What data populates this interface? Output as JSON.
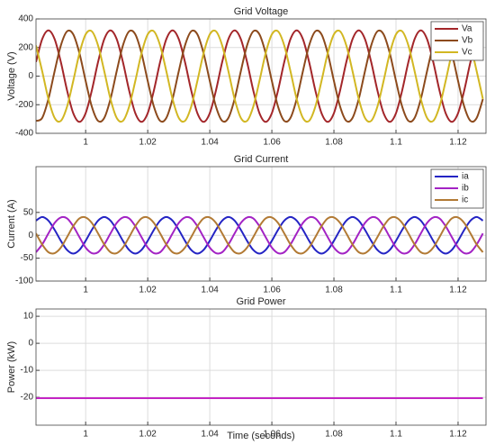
{
  "chart_data": [
    {
      "type": "line",
      "title": "Grid Voltage",
      "ylabel": "Voltage (V)",
      "xlim": [
        0.984,
        1.129
      ],
      "ylim": [
        -400,
        400
      ],
      "xticks": [
        1,
        1.02,
        1.04,
        1.06,
        1.08,
        1.1,
        1.12
      ],
      "yticks": [
        -400,
        -200,
        0,
        200,
        400
      ],
      "grid": true,
      "legend": "upper right",
      "x": [
        0.984,
        0.986,
        0.988,
        0.99,
        0.992,
        0.994,
        0.996,
        0.998,
        1,
        1.002,
        1.004,
        1.006,
        1.008,
        1.01,
        1.012,
        1.014,
        1.016,
        1.018,
        1.02,
        1.022,
        1.024,
        1.026,
        1.028,
        1.03,
        1.032,
        1.034,
        1.036,
        1.038,
        1.04,
        1.042,
        1.044,
        1.046,
        1.048,
        1.05,
        1.052,
        1.054,
        1.056,
        1.058,
        1.06,
        1.062,
        1.064,
        1.066,
        1.068,
        1.07,
        1.072,
        1.074,
        1.076,
        1.078,
        1.08,
        1.082,
        1.084,
        1.086,
        1.088,
        1.09,
        1.092,
        1.094,
        1.096,
        1.098,
        1.1,
        1.102,
        1.104,
        1.106,
        1.108,
        1.11,
        1.112,
        1.114,
        1.116,
        1.118,
        1.12,
        1.122,
        1.124,
        1.126,
        1.128
      ],
      "series": [
        {
          "name": "Va",
          "color": "#a3262a",
          "values": [
            99,
            259,
            320,
            259,
            99,
            -99,
            -259,
            -320,
            -259,
            -99,
            99,
            259,
            320,
            259,
            99,
            -99,
            -259,
            -320,
            -259,
            -99,
            99,
            259,
            320,
            259,
            99,
            -99,
            -259,
            -320,
            -259,
            -99,
            99,
            259,
            320,
            259,
            99,
            -99,
            -259,
            -320,
            -259,
            -99,
            99,
            259,
            320,
            259,
            99,
            -99,
            -259,
            -320,
            -259,
            -99,
            99,
            259,
            320,
            259,
            99,
            -99,
            -259,
            -320,
            -259,
            -99,
            99,
            259,
            320,
            259,
            99,
            -99,
            -259,
            -320,
            -259,
            -99,
            99,
            259,
            320
          ]
        },
        {
          "name": "Vb",
          "color": "#8c4a1c",
          "values": [
            -313,
            -292,
            -160,
            34,
            214,
            313,
            292,
            160,
            -34,
            -214,
            -313,
            -292,
            -160,
            34,
            214,
            313,
            292,
            160,
            -34,
            -214,
            -313,
            -292,
            -160,
            34,
            214,
            313,
            292,
            160,
            -34,
            -214,
            -313,
            -292,
            -160,
            34,
            214,
            313,
            292,
            160,
            -34,
            -214,
            -313,
            -292,
            -160,
            34,
            214,
            313,
            292,
            160,
            -34,
            -214,
            -313,
            -292,
            -160,
            34,
            214,
            313,
            292,
            160,
            -34,
            -214,
            -313,
            -292,
            -160,
            34,
            214,
            313,
            292,
            160,
            -34,
            -214,
            -313,
            -292,
            -160
          ]
        },
        {
          "name": "Vc",
          "color": "#d2b722",
          "values": [
            214,
            34,
            -160,
            -292,
            -313,
            -214,
            -34,
            160,
            292,
            313,
            214,
            34,
            -160,
            -292,
            -313,
            -214,
            -34,
            160,
            292,
            313,
            214,
            34,
            -160,
            -292,
            -313,
            -214,
            -34,
            160,
            292,
            313,
            214,
            34,
            -160,
            -292,
            -313,
            -214,
            -34,
            160,
            292,
            313,
            214,
            34,
            -160,
            -292,
            -313,
            -214,
            -34,
            160,
            292,
            313,
            214,
            34,
            -160,
            -292,
            -313,
            -214,
            -34,
            160,
            292,
            313,
            214,
            34,
            -160,
            -292,
            -313,
            -214,
            -34,
            160,
            292,
            313,
            214,
            34,
            -160
          ]
        }
      ]
    },
    {
      "type": "line",
      "title": "Grid Current",
      "ylabel": "Current (A)",
      "xlim": [
        0.984,
        1.129
      ],
      "ylim": [
        -100,
        150
      ],
      "xticks": [
        1,
        1.02,
        1.04,
        1.06,
        1.08,
        1.1,
        1.12
      ],
      "yticks": [
        -100,
        -50,
        0,
        50
      ],
      "grid": true,
      "legend": "upper right",
      "x": [
        0.984,
        0.986,
        0.988,
        0.99,
        0.992,
        0.994,
        0.996,
        0.998,
        1,
        1.002,
        1.004,
        1.006,
        1.008,
        1.01,
        1.012,
        1.014,
        1.016,
        1.018,
        1.02,
        1.022,
        1.024,
        1.026,
        1.028,
        1.03,
        1.032,
        1.034,
        1.036,
        1.038,
        1.04,
        1.042,
        1.044,
        1.046,
        1.048,
        1.05,
        1.052,
        1.054,
        1.056,
        1.058,
        1.06,
        1.062,
        1.064,
        1.066,
        1.068,
        1.07,
        1.072,
        1.074,
        1.076,
        1.078,
        1.08,
        1.082,
        1.084,
        1.086,
        1.088,
        1.09,
        1.092,
        1.094,
        1.096,
        1.098,
        1.1,
        1.102,
        1.104,
        1.106,
        1.108,
        1.11,
        1.112,
        1.114,
        1.116,
        1.118,
        1.12,
        1.122,
        1.124,
        1.126,
        1.128
      ],
      "series": [
        {
          "name": "ia",
          "color": "#2424c4",
          "values": [
            32,
            40,
            32,
            12,
            -12,
            -32,
            -40,
            -32,
            -12,
            12,
            32,
            40,
            32,
            12,
            -12,
            -32,
            -40,
            -32,
            -12,
            12,
            32,
            40,
            32,
            12,
            -12,
            -32,
            -40,
            -32,
            -12,
            12,
            32,
            40,
            32,
            12,
            -12,
            -32,
            -40,
            -32,
            -12,
            12,
            32,
            40,
            32,
            12,
            -12,
            -32,
            -40,
            -32,
            -12,
            12,
            32,
            40,
            32,
            12,
            -12,
            -32,
            -40,
            -32,
            -12,
            12,
            32,
            40,
            32,
            12,
            -12,
            -32,
            -40,
            -32,
            -12,
            12,
            32,
            40,
            32
          ]
        },
        {
          "name": "ib",
          "color": "#a323c4",
          "values": [
            -37,
            -20,
            4,
            27,
            39,
            37,
            20,
            -4,
            -27,
            -39,
            -37,
            -20,
            4,
            27,
            39,
            37,
            20,
            -4,
            -27,
            -39,
            -37,
            -20,
            4,
            27,
            39,
            37,
            20,
            -4,
            -27,
            -39,
            -37,
            -20,
            4,
            27,
            39,
            37,
            20,
            -4,
            -27,
            -39,
            -37,
            -20,
            4,
            27,
            39,
            37,
            20,
            -4,
            -27,
            -39,
            -37,
            -20,
            4,
            27,
            39,
            37,
            20,
            -4,
            -27,
            -39,
            -37,
            -20,
            4,
            27,
            39,
            37,
            20,
            -4,
            -27,
            -39,
            -37,
            -20,
            4
          ]
        },
        {
          "name": "ic",
          "color": "#b27a34",
          "values": [
            4,
            -20,
            -37,
            -39,
            -27,
            -4,
            20,
            37,
            39,
            27,
            4,
            -20,
            -37,
            -39,
            -27,
            -4,
            20,
            37,
            39,
            27,
            4,
            -20,
            -37,
            -39,
            -27,
            -4,
            20,
            37,
            39,
            27,
            4,
            -20,
            -37,
            -39,
            -27,
            -4,
            20,
            37,
            39,
            27,
            4,
            -20,
            -37,
            -39,
            -27,
            -4,
            20,
            37,
            39,
            27,
            4,
            -20,
            -37,
            -39,
            -27,
            -4,
            20,
            37,
            39,
            27,
            4,
            -20,
            -37,
            -39,
            -27,
            -4,
            20,
            37,
            39,
            27,
            4,
            -20,
            -37
          ]
        }
      ]
    },
    {
      "type": "line",
      "title": "Grid Power",
      "ylabel": "Power (kW)",
      "xlabel": "Time (seconds)",
      "xlim": [
        0.984,
        1.129
      ],
      "ylim": [
        -30.3,
        12.7
      ],
      "xticks": [
        1,
        1.02,
        1.04,
        1.06,
        1.08,
        1.1,
        1.12
      ],
      "yticks": [
        -20,
        -10,
        0,
        10
      ],
      "grid": true,
      "x": [
        0.984,
        0.986,
        0.988,
        0.99,
        0.992,
        0.994,
        0.996,
        0.998,
        1,
        1.002,
        1.004,
        1.006,
        1.008,
        1.01,
        1.012,
        1.014,
        1.016,
        1.018,
        1.02,
        1.022,
        1.024,
        1.026,
        1.028,
        1.03,
        1.032,
        1.034,
        1.036,
        1.038,
        1.04,
        1.042,
        1.044,
        1.046,
        1.048,
        1.05,
        1.052,
        1.054,
        1.056,
        1.058,
        1.06,
        1.062,
        1.064,
        1.066,
        1.068,
        1.07,
        1.072,
        1.074,
        1.076,
        1.078,
        1.08,
        1.082,
        1.084,
        1.086,
        1.088,
        1.09,
        1.092,
        1.094,
        1.096,
        1.098,
        1.1,
        1.102,
        1.104,
        1.106,
        1.108,
        1.11,
        1.112,
        1.114,
        1.116,
        1.118,
        1.12,
        1.122,
        1.124,
        1.126,
        1.128
      ],
      "series": [
        {
          "color": "#c424c4",
          "values": [
            -20.3,
            -20.3,
            -20.3,
            -20.3,
            -20.3,
            -20.3,
            -20.3,
            -20.3,
            -20.3,
            -20.3,
            -20.3,
            -20.3,
            -20.3,
            -20.3,
            -20.3,
            -20.3,
            -20.3,
            -20.3,
            -20.3,
            -20.3,
            -20.3,
            -20.3,
            -20.3,
            -20.3,
            -20.3,
            -20.3,
            -20.3,
            -20.3,
            -20.3,
            -20.3,
            -20.3,
            -20.3,
            -20.3,
            -20.3,
            -20.3,
            -20.3,
            -20.3,
            -20.3,
            -20.3,
            -20.3,
            -20.3,
            -20.3,
            -20.3,
            -20.3,
            -20.3,
            -20.3,
            -20.3,
            -20.3,
            -20.3,
            -20.3,
            -20.3,
            -20.3,
            -20.3,
            -20.3,
            -20.3,
            -20.3,
            -20.3,
            -20.3,
            -20.3,
            -20.3,
            -20.3,
            -20.3,
            -20.3,
            -20.3,
            -20.3,
            -20.3,
            -20.3,
            -20.3,
            -20.3,
            -20.3,
            -20.3,
            -20.3,
            -20.3
          ]
        }
      ]
    }
  ]
}
